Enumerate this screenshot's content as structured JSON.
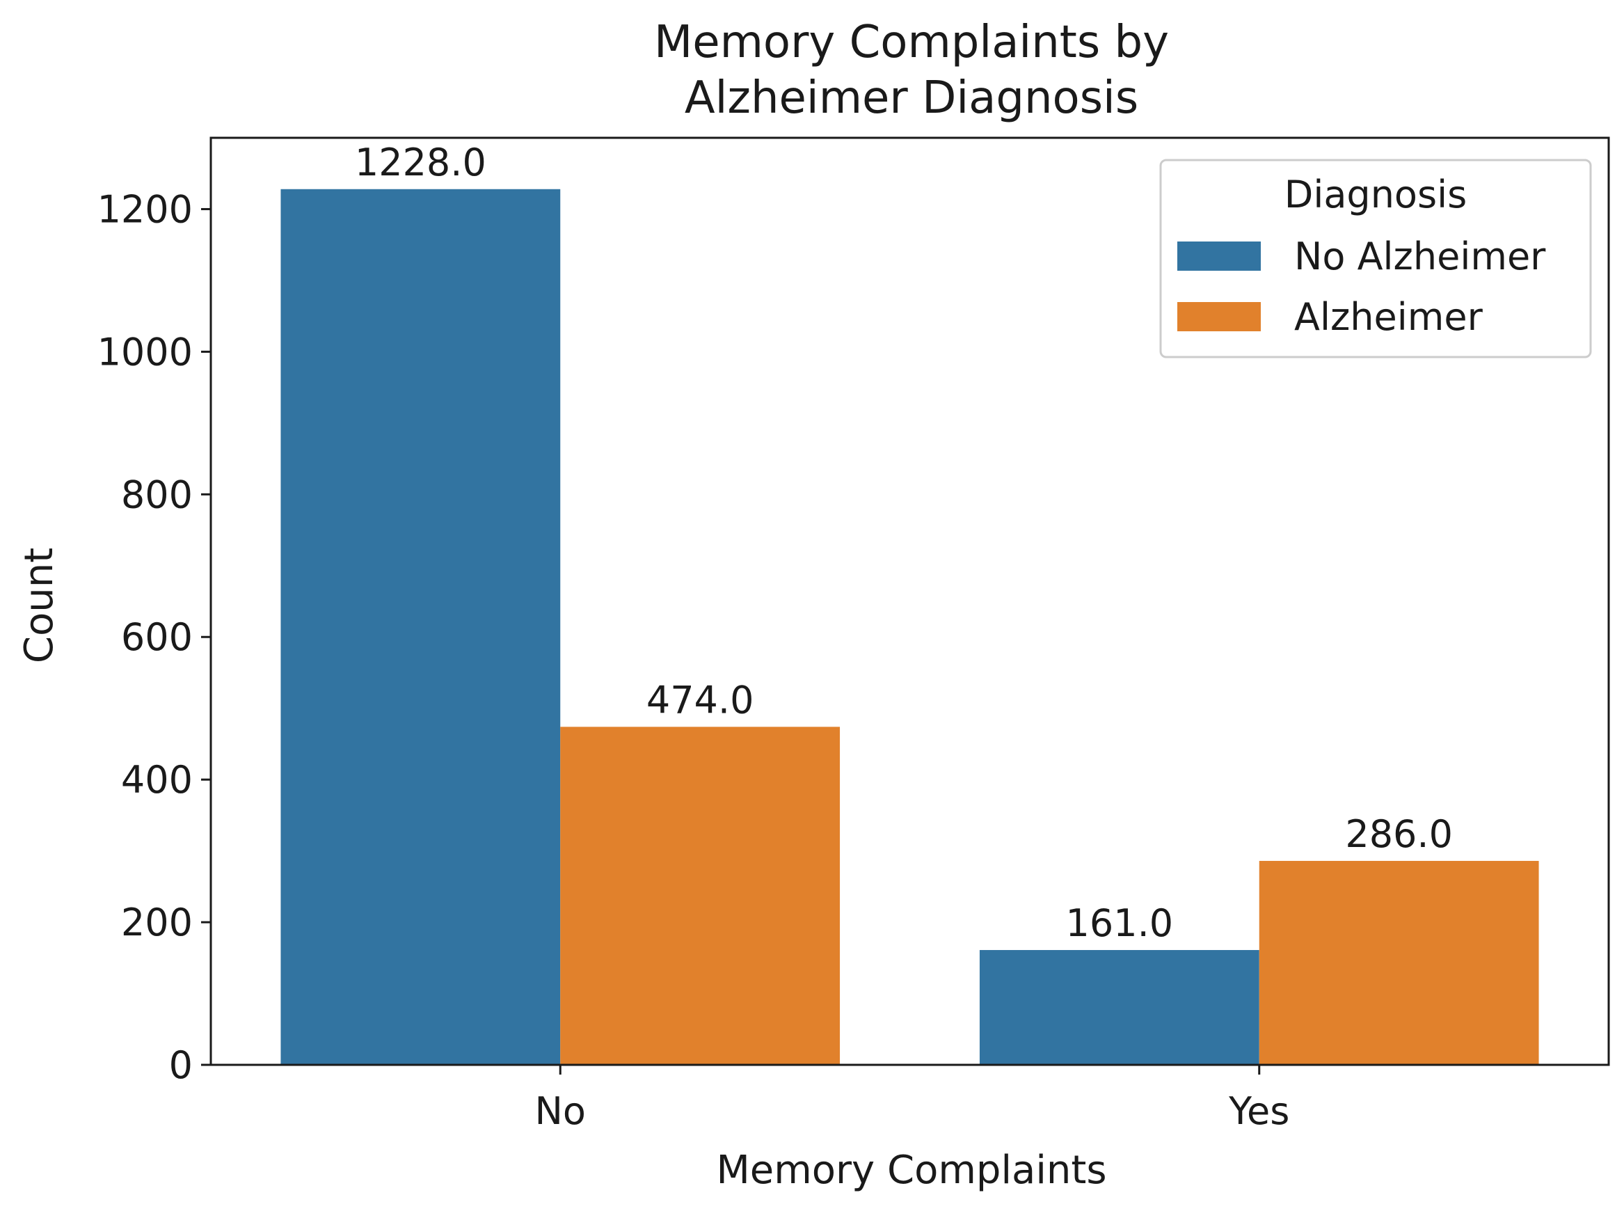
{
  "chart_data": {
    "type": "bar",
    "title_lines": [
      "Memory Complaints by",
      "Alzheimer Diagnosis"
    ],
    "xlabel": "Memory Complaints",
    "ylabel": "Count",
    "categories": [
      "No",
      "Yes"
    ],
    "series": [
      {
        "name": "No Alzheimer",
        "color": "#3274a1",
        "values": [
          1228,
          161
        ],
        "labels": [
          "1228.0",
          "161.0"
        ]
      },
      {
        "name": "Alzheimer",
        "color": "#e1812c",
        "values": [
          474,
          286
        ],
        "labels": [
          "474.0",
          "286.0"
        ]
      }
    ],
    "ylim": [
      0,
      1300
    ],
    "yticks": [
      0,
      200,
      400,
      600,
      800,
      1000,
      1200
    ],
    "grid": false,
    "legend": {
      "title": "Diagnosis",
      "placement": "top-right"
    }
  }
}
